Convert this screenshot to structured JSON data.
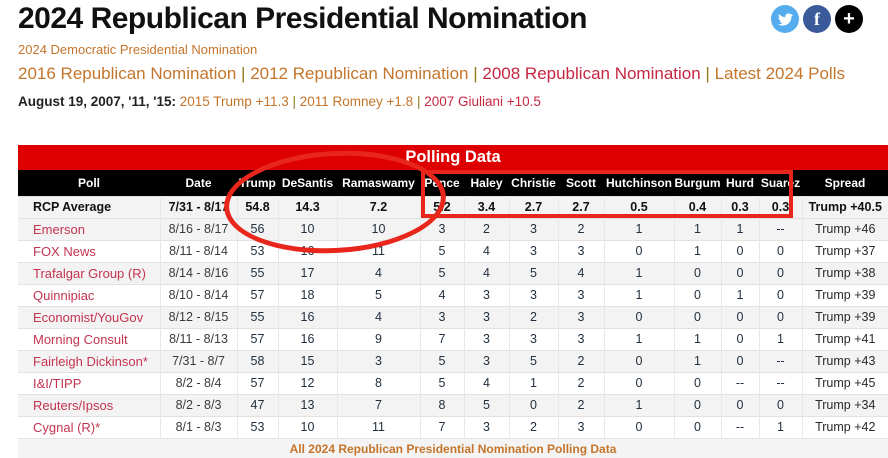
{
  "header": {
    "title": "2024 Republican Presidential Nomination",
    "subtitle_link": "2024 Democratic Presidential Nomination",
    "nav_links": [
      {
        "label": "2016 Republican Nomination",
        "color": "orange"
      },
      {
        "label": "2012 Republican Nomination",
        "color": "orange"
      },
      {
        "label": "2008 Republican Nomination",
        "color": "crimson"
      },
      {
        "label": "Latest 2024 Polls",
        "color": "orange"
      }
    ],
    "history": {
      "label": "August 19, 2007, '11, '15:",
      "links": [
        {
          "label": "2015 Trump +11.3",
          "color": "orange"
        },
        {
          "label": "2011 Romney +1.8",
          "color": "orange"
        },
        {
          "label": "2007 Giuliani +10.5",
          "color": "crimson"
        }
      ]
    },
    "social_icons": [
      "twitter-icon",
      "facebook-icon",
      "plus-icon"
    ]
  },
  "table": {
    "band_title": "Polling Data",
    "columns": [
      "Poll",
      "Date",
      "Trump",
      "DeSantis",
      "Ramaswamy",
      "Pence",
      "Haley",
      "Christie",
      "Scott",
      "Hutchinson",
      "Burgum",
      "Hurd",
      "Suarez",
      "Spread"
    ],
    "rcp_average": {
      "poll": "RCP Average",
      "date": "7/31 - 8/17",
      "values": [
        "54.8",
        "14.3",
        "7.2",
        "5.2",
        "3.4",
        "2.7",
        "2.7",
        "0.5",
        "0.4",
        "0.3",
        "0.3"
      ],
      "spread": "Trump +40.5"
    },
    "rows": [
      {
        "poll": "Emerson",
        "date": "8/16 - 8/17",
        "values": [
          "56",
          "10",
          "10",
          "3",
          "2",
          "3",
          "2",
          "1",
          "1",
          "1",
          "--"
        ],
        "spread": "Trump +46"
      },
      {
        "poll": "FOX News",
        "date": "8/11 - 8/14",
        "values": [
          "53",
          "16",
          "11",
          "5",
          "4",
          "3",
          "3",
          "0",
          "1",
          "0",
          "0"
        ],
        "spread": "Trump +37"
      },
      {
        "poll": "Trafalgar Group (R)",
        "date": "8/14 - 8/16",
        "values": [
          "55",
          "17",
          "4",
          "5",
          "4",
          "5",
          "4",
          "1",
          "0",
          "0",
          "0"
        ],
        "spread": "Trump +38"
      },
      {
        "poll": "Quinnipiac",
        "date": "8/10 - 8/14",
        "values": [
          "57",
          "18",
          "5",
          "4",
          "3",
          "3",
          "3",
          "1",
          "0",
          "1",
          "0"
        ],
        "spread": "Trump +39"
      },
      {
        "poll": "Economist/YouGov",
        "date": "8/12 - 8/15",
        "values": [
          "55",
          "16",
          "4",
          "3",
          "3",
          "2",
          "3",
          "0",
          "0",
          "0",
          "0"
        ],
        "spread": "Trump +39"
      },
      {
        "poll": "Morning Consult",
        "date": "8/11 - 8/13",
        "values": [
          "57",
          "16",
          "9",
          "7",
          "3",
          "3",
          "3",
          "1",
          "1",
          "0",
          "1"
        ],
        "spread": "Trump +41"
      },
      {
        "poll": "Fairleigh Dickinson*",
        "date": "7/31 - 8/7",
        "values": [
          "58",
          "15",
          "3",
          "5",
          "3",
          "5",
          "2",
          "0",
          "1",
          "0",
          "--"
        ],
        "spread": "Trump +43"
      },
      {
        "poll": "I&I/TIPP",
        "date": "8/2 - 8/4",
        "values": [
          "57",
          "12",
          "8",
          "5",
          "4",
          "1",
          "2",
          "0",
          "0",
          "--",
          "--"
        ],
        "spread": "Trump +45"
      },
      {
        "poll": "Reuters/Ipsos",
        "date": "8/2 - 8/3",
        "values": [
          "47",
          "13",
          "7",
          "8",
          "5",
          "0",
          "2",
          "1",
          "0",
          "0",
          "0"
        ],
        "spread": "Trump +34"
      },
      {
        "poll": "Cygnal (R)*",
        "date": "8/1 - 8/3",
        "values": [
          "53",
          "10",
          "11",
          "7",
          "3",
          "2",
          "3",
          "0",
          "0",
          "--",
          "1"
        ],
        "spread": "Trump +42"
      }
    ],
    "footer_link": "All 2024 Republican Presidential Nomination Polling Data"
  },
  "annotations": [
    "red-ellipse-around-top-three-candidates",
    "red-rectangle-around-minor-candidates"
  ],
  "colors": {
    "band_red": "#DE0000",
    "header_black": "#000000",
    "rcp_highlight_yellow": "#F1E17C",
    "annotation_red": "#E8261B",
    "link_orange": "#C4752B",
    "link_crimson": "#C62641",
    "poll_link": "#C4334F",
    "twitter_blue": "#55ACEE",
    "facebook_blue": "#3A5A99"
  }
}
